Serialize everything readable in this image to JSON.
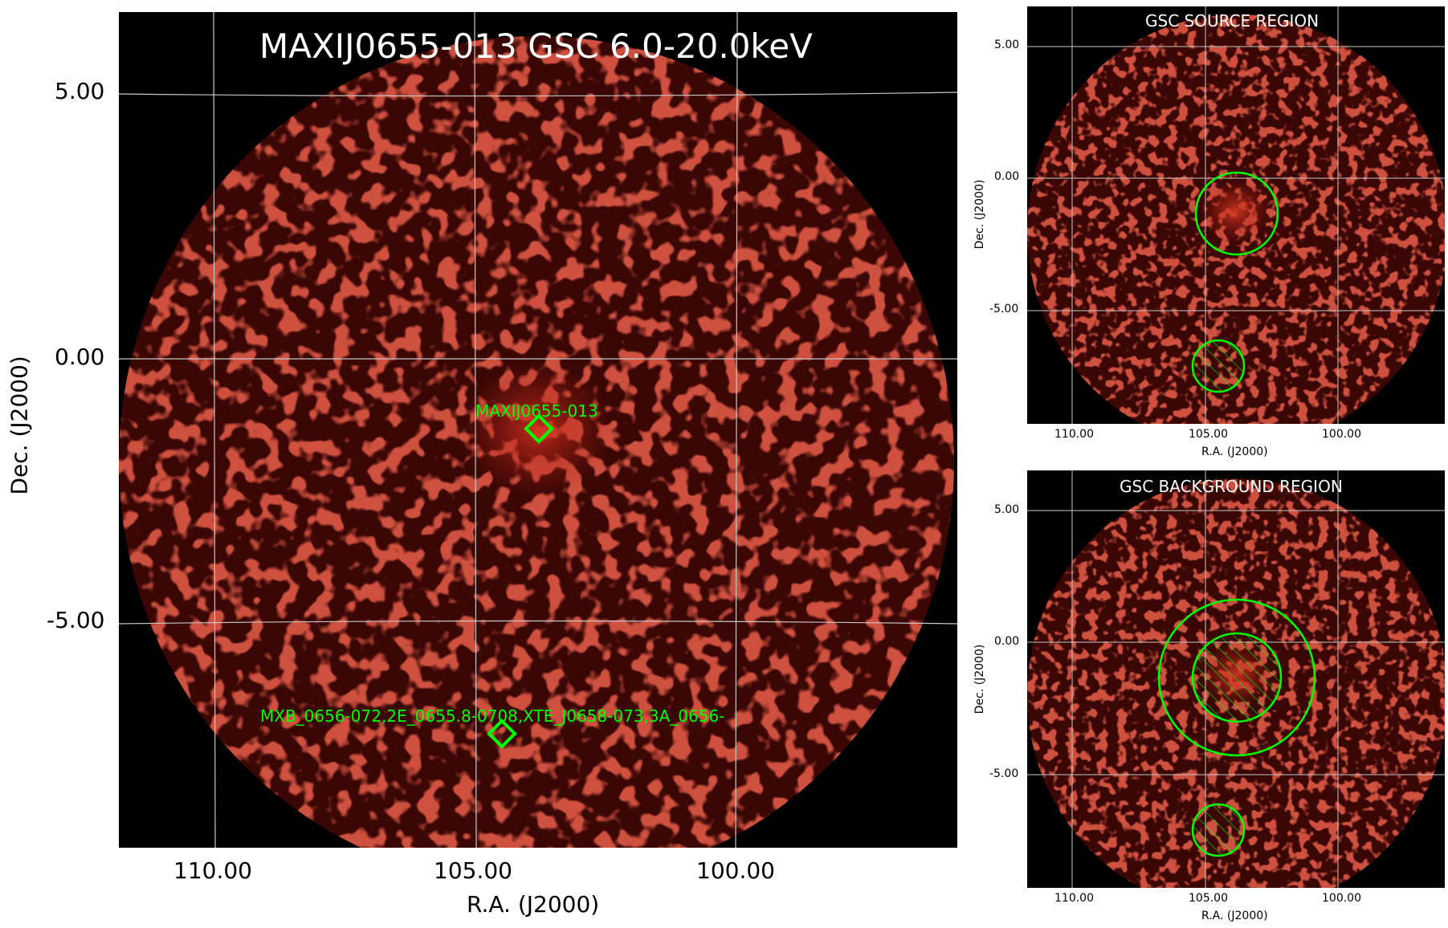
{
  "main": {
    "title": "MAXIJ0655-013 GSC 6.0-20.0keV",
    "y_ticks": [
      "5.00",
      "0.00",
      "-5.00"
    ],
    "x_ticks": [
      "110.00",
      "105.00",
      "100.00"
    ],
    "xlabel": "R.A. (J2000)",
    "ylabel": "Dec. (J2000)",
    "sources": [
      {
        "label": "MAXIJ0655-013"
      },
      {
        "label": "MXB_0656-072,2E_0655.8-0708,XTE_J0658-073,3A_0656-"
      }
    ]
  },
  "source_region": {
    "title": "GSC SOURCE REGION",
    "y_ticks": [
      "5.00",
      "0.00",
      "-5.00"
    ],
    "x_ticks": [
      "110.00",
      "105.00",
      "100.00"
    ],
    "xlabel": "R.A. (J2000)",
    "ylabel": "Dec. (J2000)"
  },
  "background_region": {
    "title": "GSC BACKGROUND REGION",
    "y_ticks": [
      "5.00",
      "0.00",
      "-5.00"
    ],
    "x_ticks": [
      "110.00",
      "105.00",
      "100.00"
    ],
    "xlabel": "R.A. (J2000)",
    "ylabel": "Dec. (J2000)"
  },
  "colors": {
    "background": "#000000",
    "emission": "#8b0d0a",
    "grid": "#c8c8c8",
    "region": "#00ff00"
  }
}
